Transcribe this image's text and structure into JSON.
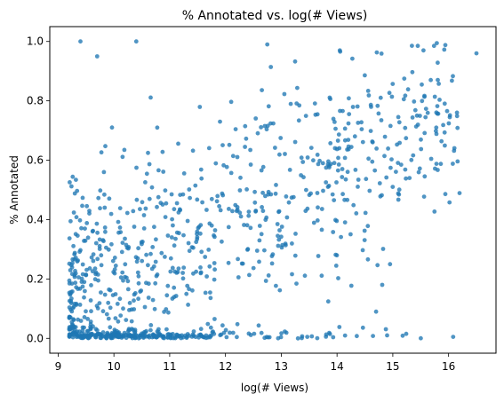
{
  "chart_data": {
    "type": "scatter",
    "title": "% Annotated vs. log(# Views)",
    "xlabel": "log(# Views)",
    "ylabel": "% Annotated",
    "xlim": [
      8.85,
      16.85
    ],
    "ylim": [
      -0.05,
      1.05
    ],
    "xticks": [
      "9",
      "10",
      "11",
      "12",
      "13",
      "14",
      "15",
      "16"
    ],
    "yticks": [
      "0.0",
      "0.2",
      "0.4",
      "0.6",
      "0.8",
      "1.0"
    ],
    "grid": false,
    "legend": "none",
    "color": "#1f77b4",
    "point_count": 900,
    "notable_points": [
      {
        "x": 9.4,
        "y": 1.0
      },
      {
        "x": 10.4,
        "y": 1.0
      },
      {
        "x": 12.75,
        "y": 0.99
      },
      {
        "x": 16.5,
        "y": 0.96
      },
      {
        "x": 15.55,
        "y": 0.97
      },
      {
        "x": 14.05,
        "y": 0.97
      },
      {
        "x": 9.7,
        "y": 0.95
      },
      {
        "x": 14.7,
        "y": 0.09
      },
      {
        "x": 13.3,
        "y": 0.0
      },
      {
        "x": 15.3,
        "y": 0.54
      }
    ]
  }
}
